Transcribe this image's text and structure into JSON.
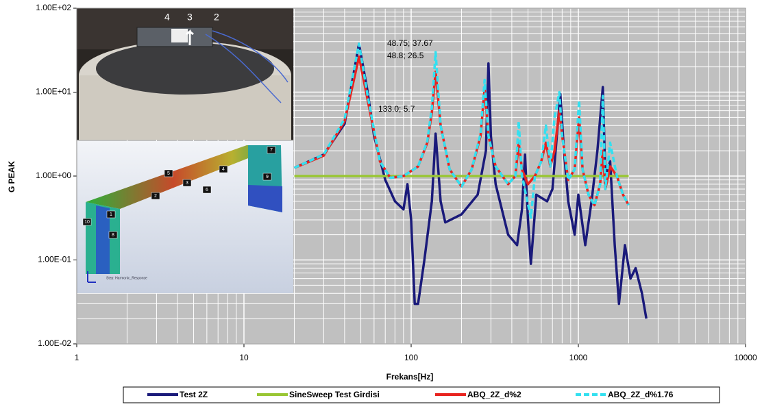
{
  "chart_data": {
    "type": "line",
    "xlabel": "Frekans[Hz]",
    "ylabel": "G PEAK",
    "xscale": "log",
    "yscale": "log",
    "xlim": [
      1,
      10000
    ],
    "ylim": [
      0.01,
      100
    ],
    "xticks": [
      1,
      10,
      100,
      1000,
      10000
    ],
    "yticks": [
      {
        "value": 0.01,
        "label": "1.00E-02"
      },
      {
        "value": 0.1,
        "label": "1.00E-01"
      },
      {
        "value": 1,
        "label": "1.00E+00"
      },
      {
        "value": 10,
        "label": "1.00E+01"
      },
      {
        "value": 100,
        "label": "1.00E+02"
      }
    ],
    "grid": true,
    "background": "#c0c0c0",
    "legend": "bottom",
    "annotations": [
      "48.75; 37.67",
      "48.8; 26.5",
      "133.0; 5.7"
    ],
    "inset": {
      "photo_labels": [
        "4",
        "3",
        "2"
      ],
      "model_labels": [
        "7",
        "5",
        "4",
        "3",
        "9",
        "6",
        "2",
        "1",
        "10",
        "8"
      ],
      "model_caption": "Step: Harmonic_Response"
    },
    "series": [
      {
        "name": "Test 2Z",
        "color": "#1a1a7a",
        "dashed": false,
        "x": [
          20,
          30,
          40,
          48.75,
          55,
          60,
          70,
          80,
          90,
          95,
          100,
          105,
          110,
          120,
          133,
          140,
          150,
          160,
          200,
          250,
          280,
          290,
          300,
          320,
          380,
          430,
          460,
          480,
          500,
          520,
          560,
          650,
          700,
          780,
          820,
          870,
          950,
          1000,
          1100,
          1200,
          1300,
          1400,
          1450,
          1550,
          1650,
          1750,
          1900,
          2050,
          2200,
          2400,
          2550
        ],
        "values": [
          1.25,
          1.8,
          4.2,
          37.67,
          10,
          3,
          0.9,
          0.5,
          0.4,
          0.8,
          0.3,
          0.03,
          0.03,
          0.1,
          0.5,
          3.2,
          0.5,
          0.28,
          0.35,
          0.6,
          2,
          22,
          3,
          0.8,
          0.2,
          0.15,
          0.4,
          1.8,
          0.3,
          0.09,
          0.6,
          0.5,
          0.7,
          9.5,
          2,
          0.5,
          0.2,
          0.6,
          0.15,
          0.5,
          2,
          11.5,
          1,
          1.5,
          0.15,
          0.03,
          0.15,
          0.06,
          0.08,
          0.04,
          0.02
        ]
      },
      {
        "name": "SineSweep Test Girdisi",
        "color": "#99c633",
        "dashed": false,
        "x": [
          20,
          2000
        ],
        "values": [
          1,
          1
        ]
      },
      {
        "name": "ABQ_2Z_d%2",
        "color": "#e8231f",
        "dashed": false,
        "x": [
          20,
          30,
          40,
          48.8,
          55,
          65,
          75,
          90,
          110,
          125,
          133,
          140,
          150,
          170,
          200,
          230,
          260,
          275,
          290,
          320,
          380,
          420,
          440,
          460,
          500,
          550,
          600,
          640,
          680,
          720,
          770,
          800,
          870,
          950,
          1010,
          1060,
          1150,
          1250,
          1350,
          1400,
          1450,
          1550,
          1700,
          1850,
          2000
        ],
        "values": [
          1.25,
          1.75,
          4.5,
          26.5,
          8,
          1.5,
          0.95,
          1.0,
          1.3,
          2.5,
          5.7,
          17.5,
          4,
          1.2,
          0.75,
          1.2,
          3,
          11,
          3,
          1.3,
          0.8,
          1,
          2.5,
          1.2,
          0.8,
          1,
          1.5,
          2.5,
          1.3,
          2,
          6,
          3,
          0.9,
          1.2,
          5,
          1.2,
          0.6,
          0.45,
          0.8,
          2,
          0.7,
          1.3,
          1.0,
          0.6,
          0.45
        ]
      },
      {
        "name": "ABQ_2Z_d%1.76",
        "color": "#33e0f0",
        "dashed": true,
        "x": [
          20,
          30,
          40,
          48.75,
          55,
          65,
          75,
          90,
          110,
          125,
          133,
          140,
          150,
          170,
          200,
          230,
          260,
          275,
          290,
          320,
          380,
          420,
          440,
          460,
          520,
          550,
          600,
          640,
          680,
          720,
          770,
          800,
          870,
          950,
          1010,
          1060,
          1150,
          1250,
          1350,
          1400,
          1450,
          1550,
          1700,
          1850,
          2000
        ],
        "values": [
          1.25,
          1.8,
          4.8,
          37.67,
          9,
          1.5,
          0.95,
          1.0,
          1.3,
          2.6,
          6.5,
          30,
          4,
          1.2,
          0.75,
          1.2,
          3.2,
          14,
          3,
          1.3,
          0.8,
          1,
          4.5,
          1.0,
          0.32,
          1,
          1.5,
          4,
          1.3,
          5,
          10,
          3,
          0.9,
          1.2,
          8,
          1.2,
          0.6,
          0.45,
          0.8,
          9,
          0.7,
          2.5,
          1.0,
          0.6,
          0.45
        ]
      }
    ]
  }
}
